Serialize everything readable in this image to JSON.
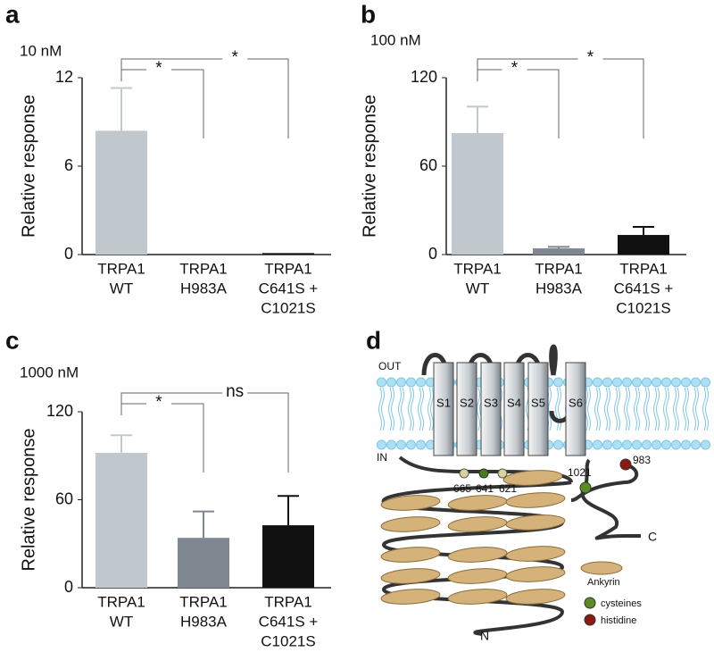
{
  "chart_data": [
    {
      "type": "bar",
      "panel": "a",
      "subtitle": "10 nM",
      "y_label": "Relative response",
      "categories": [
        [
          "TRPA1",
          "WT"
        ],
        [
          "TRPA1",
          "H983A"
        ],
        [
          "TRPA1",
          "C641S +",
          "C1021S"
        ]
      ],
      "values": [
        8.4,
        0,
        0.1
      ],
      "errors": [
        2.9,
        null,
        null
      ],
      "colors": [
        "#c0c8ce",
        "#7f8891",
        "#111111"
      ],
      "ylim": [
        0,
        12
      ],
      "yticks": [
        0,
        6,
        12
      ],
      "significance": [
        "*",
        "*"
      ]
    },
    {
      "type": "bar",
      "panel": "b",
      "subtitle": "100 nM",
      "y_label": "Relative response",
      "categories": [
        [
          "TRPA1",
          "WT"
        ],
        [
          "TRPA1",
          "H983A"
        ],
        [
          "TRPA1",
          "C641S +",
          "C1021S"
        ]
      ],
      "values": [
        82.4,
        4.2,
        13.3
      ],
      "errors": [
        18,
        1,
        5.5
      ],
      "colors": [
        "#c0c8ce",
        "#7f8891",
        "#111111"
      ],
      "ylim": [
        0,
        120
      ],
      "yticks": [
        0,
        60,
        120
      ],
      "significance": [
        "*",
        "*"
      ]
    },
    {
      "type": "bar",
      "panel": "c",
      "subtitle": "1000 nM",
      "y_label": "Relative response",
      "categories": [
        [
          "TRPA1",
          "WT"
        ],
        [
          "TRPA1",
          "H983A"
        ],
        [
          "TRPA1",
          "C641S +",
          "C1021S"
        ]
      ],
      "values": [
        92,
        34,
        42.6
      ],
      "errors": [
        12,
        18,
        20
      ],
      "colors": [
        "#c0c8ce",
        "#7f8891",
        "#111111"
      ],
      "ylim": [
        0,
        120
      ],
      "yticks": [
        0,
        60,
        120
      ],
      "significance": [
        "*",
        "ns"
      ]
    }
  ],
  "diagram": {
    "panel": "d",
    "out": "OUT",
    "in": "IN",
    "segments": [
      "S1",
      "S2",
      "S3",
      "S4",
      "S5",
      "S6"
    ],
    "residues": [
      "665",
      "641",
      "621",
      "1021",
      "983"
    ],
    "c_term": "C",
    "n_term": "N",
    "legend": [
      "Ankyrin",
      "cysteines",
      "histidine"
    ]
  }
}
